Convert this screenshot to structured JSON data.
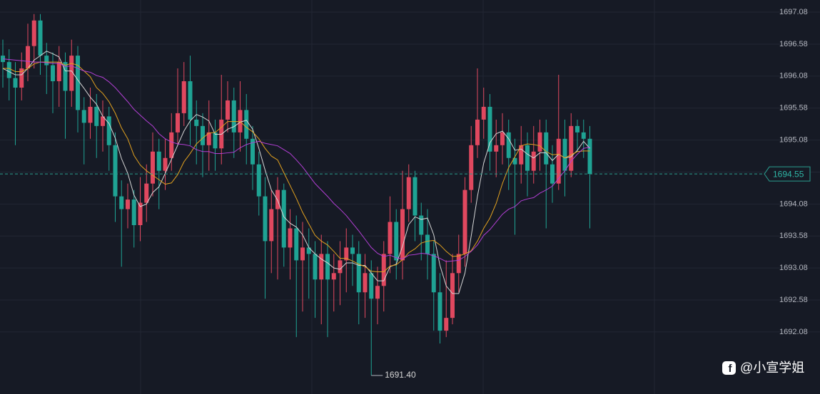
{
  "chart_data": {
    "type": "candlestick",
    "open": [
      1696.4,
      1696.3,
      1696.05,
      1695.9,
      1696.2,
      1696.55,
      1696.95,
      1696.4,
      1696.25,
      1696.0,
      1696.3,
      1695.85,
      1696.4,
      1695.55,
      1695.35,
      1695.6,
      1695.3,
      1695.45,
      1695.0,
      1694.2,
      1694.0,
      1694.15,
      1693.75,
      1694.1,
      1694.4,
      1694.9,
      1694.6,
      1694.8,
      1695.2,
      1695.5,
      1696.0,
      1695.4,
      1695.3,
      1695.0,
      1695.2,
      1694.95,
      1695.4,
      1695.7,
      1695.2,
      1695.55,
      1695.1,
      1694.7,
      1694.2,
      1693.5,
      1694.0,
      1694.3,
      1693.4,
      1693.7,
      1693.2,
      1693.4,
      1693.3,
      1692.9,
      1693.3,
      1692.9,
      1693.0,
      1693.2,
      1693.4,
      1693.3,
      1692.7,
      1693.0,
      1692.6,
      1692.8,
      1693.3,
      1693.8,
      1693.2,
      1694.0,
      1694.5,
      1693.9,
      1693.6,
      1693.3,
      1692.7,
      1692.1,
      1692.3,
      1693.0,
      1693.3,
      1694.3,
      1695.0,
      1695.4,
      1695.6,
      1694.9,
      1695.0,
      1695.2,
      1694.8,
      1694.7,
      1695.0,
      1694.6,
      1694.9,
      1695.2,
      1694.7,
      1694.4,
      1695.1,
      1694.6,
      1695.3,
      1695.2,
      1695.1
    ],
    "high": [
      1696.65,
      1696.5,
      1696.3,
      1696.45,
      1696.9,
      1697.05,
      1697.05,
      1696.6,
      1696.45,
      1696.55,
      1696.45,
      1696.65,
      1696.55,
      1695.75,
      1695.9,
      1695.8,
      1695.7,
      1695.6,
      1695.2,
      1694.45,
      1694.4,
      1694.3,
      1694.5,
      1694.7,
      1695.2,
      1695.1,
      1695.1,
      1695.5,
      1696.2,
      1696.3,
      1696.4,
      1695.7,
      1695.5,
      1695.7,
      1695.4,
      1696.1,
      1696.0,
      1695.9,
      1696.0,
      1695.8,
      1695.3,
      1694.9,
      1694.5,
      1694.3,
      1694.5,
      1694.4,
      1694.0,
      1693.9,
      1693.8,
      1693.7,
      1693.5,
      1693.6,
      1693.5,
      1693.3,
      1693.5,
      1693.7,
      1693.6,
      1693.5,
      1693.3,
      1693.2,
      1693.1,
      1693.5,
      1694.2,
      1694.0,
      1694.6,
      1694.7,
      1694.6,
      1694.1,
      1694.0,
      1693.5,
      1693.0,
      1693.2,
      1693.3,
      1693.6,
      1694.5,
      1695.3,
      1696.2,
      1695.9,
      1695.8,
      1695.4,
      1695.5,
      1695.4,
      1695.1,
      1695.3,
      1695.2,
      1695.3,
      1695.4,
      1695.4,
      1695.0,
      1696.1,
      1695.4,
      1695.5,
      1695.4,
      1695.4,
      1695.3
    ],
    "low": [
      1695.9,
      1695.7,
      1695.0,
      1695.7,
      1696.0,
      1696.2,
      1696.1,
      1695.8,
      1695.5,
      1695.6,
      1695.1,
      1695.6,
      1695.2,
      1694.7,
      1695.1,
      1694.8,
      1694.9,
      1694.6,
      1693.8,
      1693.1,
      1693.7,
      1693.4,
      1693.5,
      1693.8,
      1694.2,
      1694.0,
      1694.3,
      1694.6,
      1695.0,
      1695.3,
      1695.0,
      1694.7,
      1694.5,
      1694.6,
      1694.6,
      1694.7,
      1695.2,
      1694.8,
      1694.9,
      1694.7,
      1694.3,
      1693.9,
      1692.6,
      1693.0,
      1692.9,
      1693.1,
      1692.9,
      1692.0,
      1692.4,
      1692.6,
      1692.3,
      1692.2,
      1692.0,
      1692.4,
      1692.5,
      1692.7,
      1692.8,
      1692.2,
      1692.3,
      1691.4,
      1692.2,
      1692.4,
      1693.0,
      1692.9,
      1692.9,
      1693.8,
      1693.5,
      1693.2,
      1692.9,
      1692.1,
      1691.9,
      1692.0,
      1692.2,
      1692.7,
      1693.1,
      1694.1,
      1694.8,
      1695.1,
      1694.6,
      1694.5,
      1694.7,
      1694.3,
      1693.6,
      1694.4,
      1694.2,
      1694.4,
      1694.6,
      1693.7,
      1694.1,
      1694.3,
      1694.2,
      1694.5,
      1694.9,
      1694.8,
      1693.7
    ],
    "close": [
      1696.3,
      1696.05,
      1695.9,
      1696.2,
      1696.55,
      1696.95,
      1696.4,
      1696.25,
      1696.0,
      1696.3,
      1695.85,
      1696.4,
      1695.55,
      1695.35,
      1695.6,
      1695.3,
      1695.45,
      1695.0,
      1694.2,
      1694.0,
      1694.15,
      1693.75,
      1694.1,
      1694.4,
      1694.9,
      1694.6,
      1694.8,
      1695.2,
      1695.5,
      1696.0,
      1695.4,
      1695.3,
      1695.0,
      1695.2,
      1694.95,
      1695.4,
      1695.7,
      1695.2,
      1695.55,
      1695.1,
      1694.7,
      1694.2,
      1693.5,
      1694.0,
      1694.3,
      1693.4,
      1693.7,
      1693.2,
      1693.4,
      1693.3,
      1692.9,
      1693.3,
      1692.9,
      1693.0,
      1693.2,
      1693.4,
      1693.3,
      1692.7,
      1693.0,
      1692.6,
      1692.8,
      1693.3,
      1693.8,
      1693.2,
      1694.0,
      1694.5,
      1693.9,
      1693.6,
      1693.3,
      1692.7,
      1692.1,
      1692.3,
      1693.0,
      1693.3,
      1694.3,
      1695.0,
      1695.4,
      1695.6,
      1694.9,
      1695.0,
      1695.2,
      1694.8,
      1694.7,
      1695.0,
      1694.6,
      1694.9,
      1695.2,
      1694.7,
      1694.4,
      1695.1,
      1694.6,
      1695.3,
      1695.2,
      1695.1,
      1694.55
    ],
    "up_color": "#e0485f",
    "down_color": "#1fa394",
    "series": [
      {
        "color": "#d6d6d6",
        "values": [
          1696.2,
          1696.15,
          1696.1,
          1696.1,
          1696.2,
          1696.33,
          1696.4,
          1696.47,
          1696.43,
          1696.38,
          1696.16,
          1696.16,
          1696.02,
          1695.89,
          1695.75,
          1695.64,
          1695.45,
          1695.34,
          1695.11,
          1694.79,
          1694.56,
          1694.22,
          1694.04,
          1694.08,
          1694.26,
          1694.35,
          1694.56,
          1694.78,
          1695.0,
          1695.22,
          1695.38,
          1695.48,
          1695.44,
          1695.38,
          1695.17,
          1695.17,
          1695.25,
          1695.29,
          1695.36,
          1695.39,
          1695.25,
          1694.95,
          1694.61,
          1694.3,
          1694.14,
          1693.88,
          1693.78,
          1693.72,
          1693.6,
          1693.4,
          1693.3,
          1693.22,
          1693.16,
          1693.08,
          1693.06,
          1693.16,
          1693.16,
          1693.12,
          1693.12,
          1693.0,
          1692.88,
          1692.88,
          1693.1,
          1693.14,
          1693.42,
          1693.76,
          1693.88,
          1693.84,
          1693.86,
          1693.6,
          1693.12,
          1692.8,
          1692.68,
          1692.68,
          1693.0,
          1693.58,
          1694.2,
          1694.72,
          1695.04,
          1695.18,
          1695.22,
          1695.1,
          1694.92,
          1694.94,
          1694.86,
          1694.8,
          1694.88,
          1694.88,
          1694.76,
          1694.86,
          1694.8,
          1694.82,
          1694.92,
          1695.06,
          1694.95
        ]
      },
      {
        "color": "#e3a21f",
        "values": [
          1696.2,
          1696.2,
          1696.15,
          1696.15,
          1696.2,
          1696.27,
          1696.3,
          1696.3,
          1696.3,
          1696.3,
          1696.25,
          1696.28,
          1696.25,
          1696.16,
          1696.07,
          1695.9,
          1695.81,
          1695.68,
          1695.5,
          1695.27,
          1695.1,
          1694.84,
          1694.69,
          1694.6,
          1694.53,
          1694.46,
          1694.39,
          1694.41,
          1694.54,
          1694.74,
          1694.87,
          1695.02,
          1695.11,
          1695.19,
          1695.2,
          1695.28,
          1695.37,
          1695.37,
          1695.37,
          1695.28,
          1695.21,
          1695.1,
          1694.95,
          1694.83,
          1694.77,
          1694.57,
          1694.37,
          1694.17,
          1693.95,
          1693.77,
          1693.59,
          1693.5,
          1693.44,
          1693.34,
          1693.23,
          1693.23,
          1693.19,
          1693.14,
          1693.1,
          1693.03,
          1693.02,
          1693.02,
          1693.11,
          1693.13,
          1693.21,
          1693.32,
          1693.38,
          1693.47,
          1693.5,
          1693.51,
          1693.44,
          1693.34,
          1693.26,
          1693.27,
          1693.3,
          1693.35,
          1693.5,
          1693.7,
          1693.86,
          1694.09,
          1694.4,
          1694.65,
          1694.82,
          1694.99,
          1695.02,
          1695.01,
          1694.99,
          1694.9,
          1694.85,
          1694.86,
          1694.8,
          1694.85,
          1694.9,
          1694.91,
          1694.91
        ]
      },
      {
        "color": "#b23fd4",
        "values": [
          1696.35,
          1696.34,
          1696.33,
          1696.32,
          1696.31,
          1696.3,
          1696.3,
          1696.29,
          1696.28,
          1696.28,
          1696.23,
          1696.24,
          1696.2,
          1696.16,
          1696.14,
          1696.09,
          1696.06,
          1695.99,
          1695.9,
          1695.79,
          1695.68,
          1695.56,
          1695.47,
          1695.38,
          1695.3,
          1695.18,
          1695.1,
          1695.05,
          1695.02,
          1695.01,
          1694.99,
          1694.93,
          1694.9,
          1694.9,
          1694.87,
          1694.87,
          1694.88,
          1694.89,
          1694.96,
          1695.01,
          1695.04,
          1695.06,
          1695.03,
          1695.01,
          1694.99,
          1694.93,
          1694.87,
          1694.77,
          1694.66,
          1694.53,
          1694.4,
          1694.3,
          1694.2,
          1694.09,
          1694.0,
          1693.9,
          1693.78,
          1693.66,
          1693.53,
          1693.4,
          1693.31,
          1693.26,
          1693.28,
          1693.24,
          1693.22,
          1693.28,
          1693.29,
          1693.31,
          1693.3,
          1693.27,
          1693.23,
          1693.18,
          1693.19,
          1693.2,
          1693.26,
          1693.34,
          1693.44,
          1693.59,
          1693.68,
          1693.8,
          1693.92,
          1694.0,
          1694.04,
          1694.13,
          1694.16,
          1694.18,
          1694.25,
          1694.3,
          1694.36,
          1694.48,
          1694.6,
          1694.75,
          1694.86,
          1694.95,
          1694.97
        ]
      }
    ],
    "ylim": [
      1691.11,
      1697.27
    ],
    "yticks": [
      1697.08,
      1696.58,
      1696.08,
      1695.58,
      1695.08,
      1694.58,
      1694.08,
      1693.58,
      1693.08,
      1692.58,
      1692.08
    ],
    "grid": true,
    "current_price": 1694.55,
    "low_annotation": {
      "value": 1691.4,
      "label": "1691.40"
    },
    "watermark": "@小宣学姐"
  }
}
